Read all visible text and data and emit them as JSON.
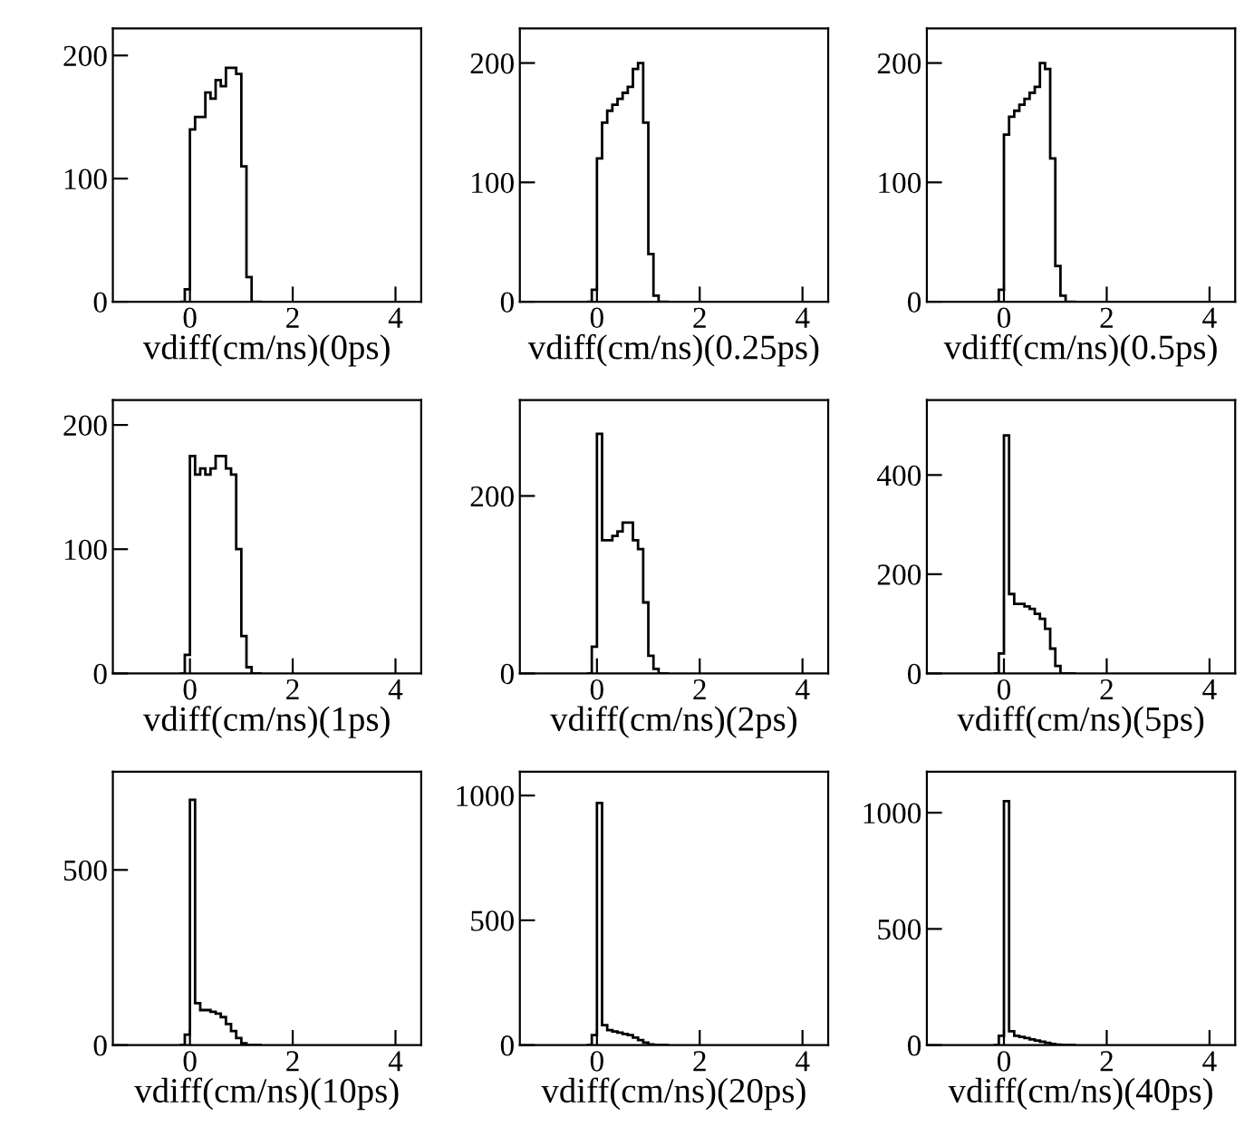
{
  "chart_data": [
    {
      "type": "histogram",
      "xlabel": "vdiff(cm/ns)(0ps)",
      "bins": [
        -0.2,
        -0.1,
        0,
        0.1,
        0.2,
        0.3,
        0.4,
        0.5,
        0.6,
        0.7,
        0.8,
        0.9,
        1.0,
        1.1,
        1.2,
        1.3,
        1.4
      ],
      "values": [
        0,
        10,
        140,
        150,
        150,
        170,
        165,
        180,
        175,
        190,
        190,
        185,
        110,
        20,
        0,
        0
      ],
      "color": "#000000",
      "xlim": [
        -1.5,
        4.5
      ],
      "ylim": [
        0,
        222
      ],
      "xticks": [
        0,
        2,
        4
      ],
      "yticks": [
        0,
        100,
        200
      ]
    },
    {
      "type": "histogram",
      "xlabel": "vdiff(cm/ns)(0.25ps)",
      "bins": [
        -0.2,
        -0.1,
        0,
        0.1,
        0.2,
        0.3,
        0.4,
        0.5,
        0.6,
        0.7,
        0.8,
        0.9,
        1.0,
        1.1,
        1.2,
        1.3,
        1.4
      ],
      "values": [
        0,
        10,
        120,
        150,
        160,
        165,
        170,
        175,
        180,
        195,
        200,
        150,
        40,
        5,
        0,
        0
      ],
      "color": "#000000",
      "xlim": [
        -1.5,
        4.5
      ],
      "ylim": [
        0,
        229
      ],
      "xticks": [
        0,
        2,
        4
      ],
      "yticks": [
        0,
        100,
        200
      ]
    },
    {
      "type": "histogram",
      "xlabel": "vdiff(cm/ns)(0.5ps)",
      "bins": [
        -0.2,
        -0.1,
        0,
        0.1,
        0.2,
        0.3,
        0.4,
        0.5,
        0.6,
        0.7,
        0.8,
        0.9,
        1.0,
        1.1,
        1.2,
        1.3,
        1.4
      ],
      "values": [
        0,
        10,
        140,
        155,
        160,
        165,
        170,
        175,
        180,
        200,
        195,
        120,
        30,
        5,
        0,
        0
      ],
      "color": "#000000",
      "xlim": [
        -1.5,
        4.5
      ],
      "ylim": [
        0,
        229
      ],
      "xticks": [
        0,
        2,
        4
      ],
      "yticks": [
        0,
        100,
        200
      ]
    },
    {
      "type": "histogram",
      "xlabel": "vdiff(cm/ns)(1ps)",
      "bins": [
        -0.2,
        -0.1,
        0,
        0.1,
        0.2,
        0.3,
        0.4,
        0.5,
        0.6,
        0.7,
        0.8,
        0.9,
        1.0,
        1.1,
        1.2,
        1.3,
        1.4
      ],
      "values": [
        0,
        15,
        175,
        160,
        165,
        160,
        165,
        175,
        175,
        165,
        160,
        100,
        30,
        5,
        0,
        0
      ],
      "color": "#000000",
      "xlim": [
        -1.5,
        4.5
      ],
      "ylim": [
        0,
        220
      ],
      "xticks": [
        0,
        2,
        4
      ],
      "yticks": [
        0,
        100,
        200
      ]
    },
    {
      "type": "histogram",
      "xlabel": "vdiff(cm/ns)(2ps)",
      "bins": [
        -0.2,
        -0.1,
        0,
        0.1,
        0.2,
        0.3,
        0.4,
        0.5,
        0.6,
        0.7,
        0.8,
        0.9,
        1.0,
        1.1,
        1.2,
        1.3,
        1.4
      ],
      "values": [
        0,
        30,
        270,
        150,
        150,
        155,
        160,
        170,
        170,
        150,
        140,
        80,
        20,
        5,
        0,
        0
      ],
      "color": "#000000",
      "xlim": [
        -1.5,
        4.5
      ],
      "ylim": [
        0,
        308
      ],
      "xticks": [
        0,
        2,
        4
      ],
      "yticks": [
        0,
        200
      ]
    },
    {
      "type": "histogram",
      "xlabel": "vdiff(cm/ns)(5ps)",
      "bins": [
        -0.2,
        -0.1,
        0,
        0.1,
        0.2,
        0.3,
        0.4,
        0.5,
        0.6,
        0.7,
        0.8,
        0.9,
        1.0,
        1.1,
        1.2,
        1.3,
        1.4
      ],
      "values": [
        0,
        40,
        480,
        160,
        140,
        140,
        135,
        130,
        120,
        110,
        90,
        50,
        15,
        0,
        0,
        0
      ],
      "color": "#000000",
      "xlim": [
        -1.5,
        4.5
      ],
      "ylim": [
        0,
        551
      ],
      "xticks": [
        0,
        2,
        4
      ],
      "yticks": [
        0,
        200,
        400
      ]
    },
    {
      "type": "histogram",
      "xlabel": "vdiff(cm/ns)(10ps)",
      "bins": [
        -0.2,
        -0.1,
        0,
        0.1,
        0.2,
        0.3,
        0.4,
        0.5,
        0.6,
        0.7,
        0.8,
        0.9,
        1.0,
        1.1,
        1.2,
        1.3,
        1.4
      ],
      "values": [
        0,
        30,
        700,
        120,
        100,
        100,
        95,
        90,
        80,
        60,
        40,
        20,
        5,
        0,
        0,
        0
      ],
      "color": "#000000",
      "xlim": [
        -1.5,
        4.5
      ],
      "ylim": [
        0,
        780
      ],
      "xticks": [
        0,
        2,
        4
      ],
      "yticks": [
        0,
        500
      ]
    },
    {
      "type": "histogram",
      "xlabel": "vdiff(cm/ns)(20ps)",
      "bins": [
        -0.2,
        -0.1,
        0,
        0.1,
        0.2,
        0.3,
        0.4,
        0.5,
        0.6,
        0.7,
        0.8,
        0.9,
        1.0,
        1.1,
        1.2,
        1.3,
        1.4
      ],
      "values": [
        0,
        40,
        970,
        80,
        60,
        55,
        50,
        45,
        40,
        30,
        20,
        10,
        3,
        0,
        0,
        0
      ],
      "color": "#000000",
      "xlim": [
        -1.5,
        4.5
      ],
      "ylim": [
        0,
        1095
      ],
      "xticks": [
        0,
        2,
        4
      ],
      "yticks": [
        0,
        500,
        1000
      ]
    },
    {
      "type": "histogram",
      "xlabel": "vdiff(cm/ns)(40ps)",
      "bins": [
        -0.2,
        -0.1,
        0,
        0.1,
        0.2,
        0.3,
        0.4,
        0.5,
        0.6,
        0.7,
        0.8,
        0.9,
        1.0,
        1.1,
        1.2,
        1.3,
        1.4
      ],
      "values": [
        0,
        40,
        1050,
        60,
        40,
        35,
        30,
        25,
        20,
        15,
        10,
        5,
        2,
        0,
        0,
        0
      ],
      "color": "#000000",
      "xlim": [
        -1.5,
        4.5
      ],
      "ylim": [
        0,
        1176
      ],
      "xticks": [
        0,
        2,
        4
      ],
      "yticks": [
        0,
        500,
        1000
      ]
    }
  ]
}
